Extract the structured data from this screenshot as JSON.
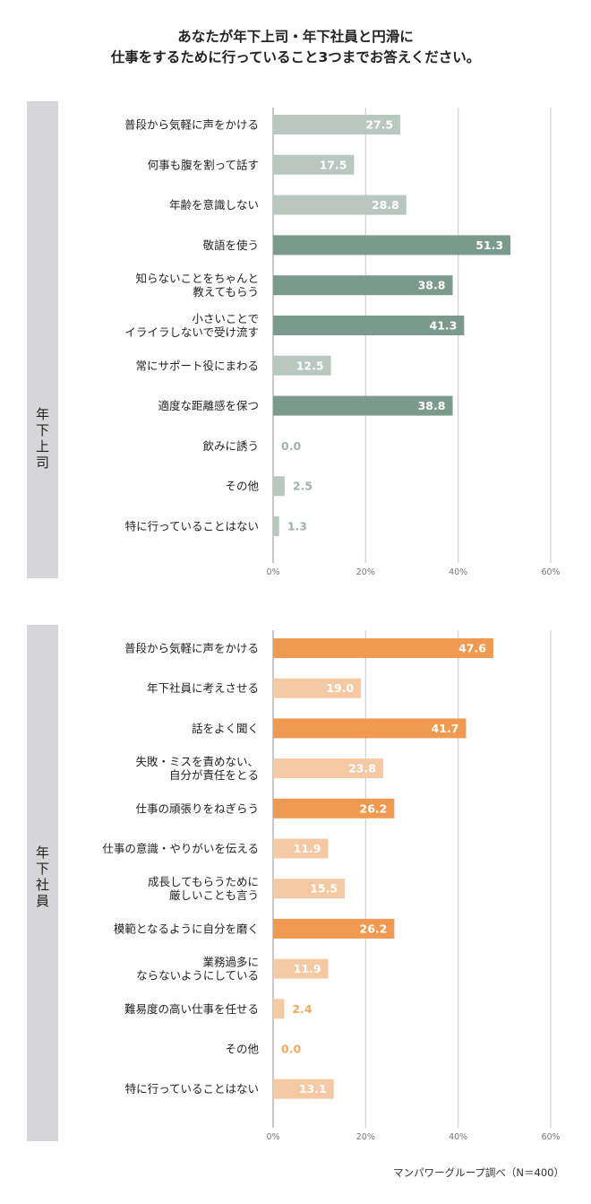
{
  "title": {
    "line1": "あなたが年下上司・年下社員と円滑に",
    "line2": "仕事をするために行っていること3つまでお答えください。"
  },
  "footer": "マンパワーグループ調べ（N＝400）",
  "colors": {
    "panel1_dark": "#7b998d",
    "panel1_light": "#b9c7c1",
    "panel2_dark": "#ef9a50",
    "panel2_light": "#f5c9a3",
    "grid": "#d0d0d0",
    "sidebar": "#d6d6d8"
  },
  "chart_data": [
    {
      "type": "bar",
      "orientation": "horizontal",
      "group_label": "年下上司",
      "categories": [
        "普段から気軽に声をかける",
        "何事も腹を割って話す",
        "年齢を意識しない",
        "敬語を使う",
        "知らないことをちゃんと\n教えてもらう",
        "小さいことで\nイライラしないで受け流す",
        "常にサポート役にまわる",
        "適度な距離感を保つ",
        "飲みに誘う",
        "その他",
        "特に行っていることはない"
      ],
      "values": [
        27.5,
        17.5,
        28.8,
        51.3,
        38.8,
        41.3,
        12.5,
        38.8,
        0.0,
        2.5,
        1.3
      ],
      "highlighted": [
        false,
        false,
        false,
        true,
        true,
        true,
        false,
        true,
        false,
        false,
        false
      ],
      "xlim": [
        0,
        60
      ],
      "ticks": [
        "0%",
        "20%",
        "40%",
        "60%"
      ],
      "grid": true
    },
    {
      "type": "bar",
      "orientation": "horizontal",
      "group_label": "年下社員",
      "categories": [
        "普段から気軽に声をかける",
        "年下社員に考えさせる",
        "話をよく聞く",
        "失敗・ミスを責めない、\n自分が責任をとる",
        "仕事の頑張りをねぎらう",
        "仕事の意識・やりがいを伝える",
        "成長してもらうために\n厳しいことも言う",
        "模範となるように自分を磨く",
        "業務過多に\nならないようにしている",
        "難易度の高い仕事を任せる",
        "その他",
        "特に行っていることはない"
      ],
      "values": [
        47.6,
        19.0,
        41.7,
        23.8,
        26.2,
        11.9,
        15.5,
        26.2,
        11.9,
        2.4,
        0.0,
        13.1
      ],
      "highlighted": [
        true,
        false,
        true,
        false,
        true,
        false,
        false,
        true,
        false,
        false,
        false,
        false
      ],
      "xlim": [
        0,
        60
      ],
      "ticks": [
        "0%",
        "20%",
        "40%",
        "60%"
      ],
      "grid": true
    }
  ]
}
